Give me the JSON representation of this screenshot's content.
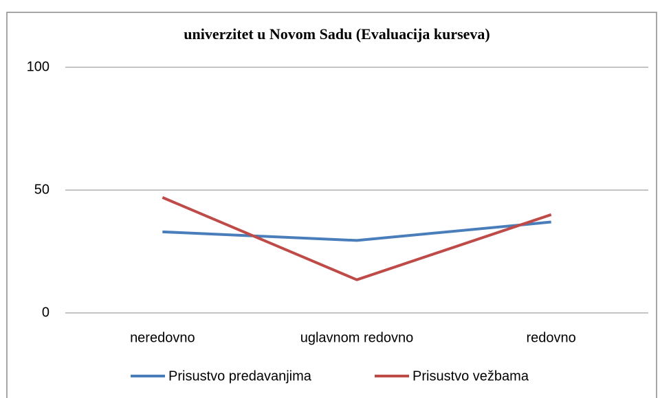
{
  "chart_data": {
    "type": "line",
    "title": "univerzitet u  Novom Sadu (Evaluacija kurseva)",
    "categories": [
      "neredovno",
      "uglavnom redovno",
      "redovno"
    ],
    "series": [
      {
        "name": "Prisustvo predavanjima",
        "color": "#4a7ebb",
        "values": [
          33,
          29.5,
          37
        ]
      },
      {
        "name": "Prisustvo vežbama",
        "color": "#be4b48",
        "values": [
          47,
          13.5,
          40
        ]
      }
    ],
    "ylim": [
      0,
      100
    ],
    "yticks": [
      0,
      50,
      100
    ],
    "grid": true,
    "legend": "bottom"
  }
}
